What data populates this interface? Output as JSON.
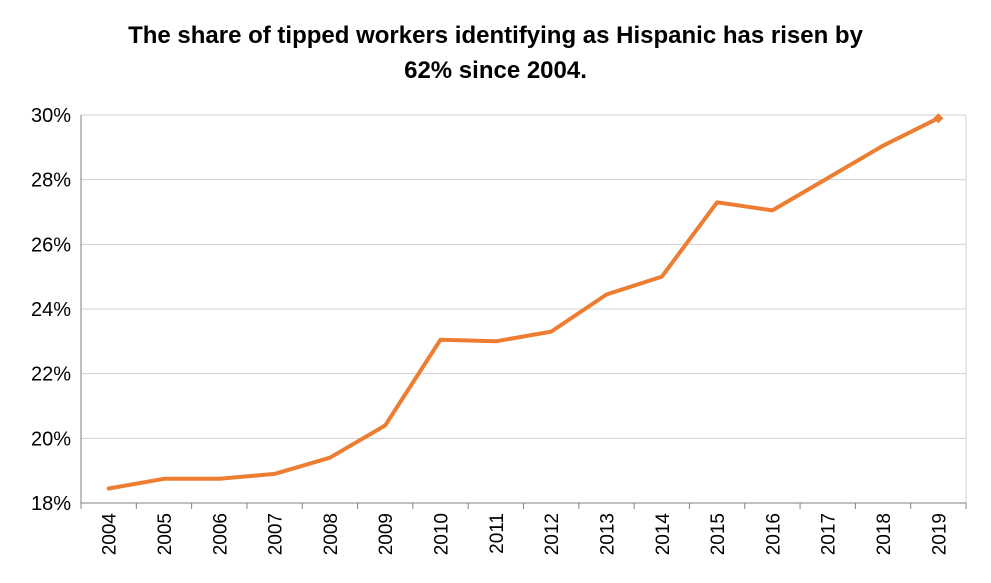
{
  "chart_data": {
    "type": "line",
    "title_line1": "The share of tipped workers identifying as Hispanic has risen by",
    "title_line2": "62% since 2004.",
    "xlabel": "",
    "ylabel": "",
    "x": [
      "2004",
      "2005",
      "2006",
      "2007",
      "2008",
      "2009",
      "2010",
      "2011",
      "2012",
      "2013",
      "2014",
      "2015",
      "2016",
      "2017",
      "2018",
      "2019"
    ],
    "series": [
      {
        "values": [
          18.45,
          18.75,
          18.75,
          18.9,
          19.4,
          20.4,
          23.05,
          23.0,
          23.3,
          24.45,
          25.0,
          27.3,
          27.05,
          28.05,
          29.05,
          29.9
        ]
      }
    ],
    "y_ticks": [
      "18%",
      "20%",
      "22%",
      "24%",
      "26%",
      "28%",
      "30%"
    ],
    "ylim": [
      18,
      30
    ],
    "grid": true,
    "legend": "none",
    "line_color": "#ED7D31",
    "grid_color": "#D0D0D0"
  }
}
